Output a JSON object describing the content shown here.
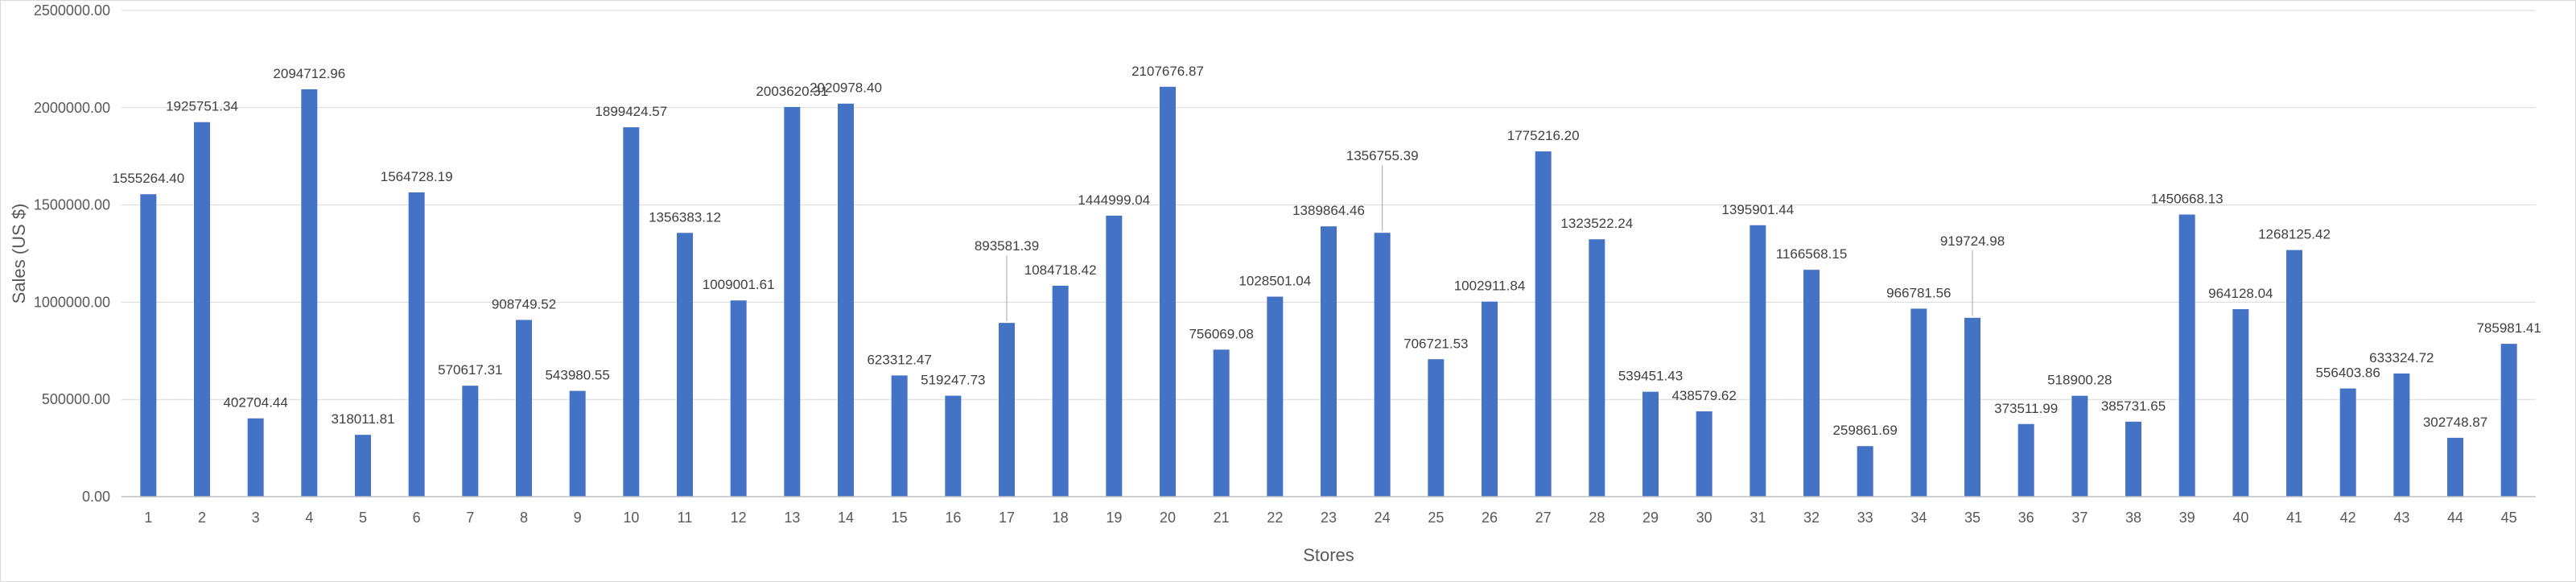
{
  "chart_data": {
    "type": "bar",
    "xlabel": "Stores",
    "ylabel": "Sales (US $)",
    "ylim": [
      0,
      2500000
    ],
    "yticks": [
      "0.00",
      "500000.00",
      "1000000.00",
      "1500000.00",
      "2000000.00",
      "2500000.00"
    ],
    "ytick_values": [
      0,
      500000,
      1000000,
      1500000,
      2000000,
      2500000
    ],
    "grid": true,
    "legend": "none",
    "bar_color": "#4472C4",
    "categories": [
      "1",
      "2",
      "3",
      "4",
      "5",
      "6",
      "7",
      "8",
      "9",
      "10",
      "11",
      "12",
      "13",
      "14",
      "15",
      "16",
      "17",
      "18",
      "19",
      "20",
      "21",
      "22",
      "23",
      "24",
      "25",
      "26",
      "27",
      "28",
      "29",
      "30",
      "31",
      "32",
      "33",
      "34",
      "35",
      "36",
      "37",
      "38",
      "39",
      "40",
      "41",
      "42",
      "43",
      "44",
      "45"
    ],
    "values": [
      1555264.4,
      1925751.34,
      402704.44,
      2094712.96,
      318011.81,
      1564728.19,
      570617.31,
      908749.52,
      543980.55,
      1899424.57,
      1356383.12,
      1009001.61,
      2003620.31,
      2020978.4,
      623312.47,
      519247.73,
      893581.39,
      1084718.42,
      1444999.04,
      2107676.87,
      756069.08,
      1028501.04,
      1389864.46,
      1356755.39,
      706721.53,
      1002911.84,
      1775216.2,
      1323522.24,
      539451.43,
      438579.62,
      1395901.44,
      1166568.15,
      259861.69,
      966781.56,
      919724.98,
      373511.99,
      518900.28,
      385731.65,
      1450668.13,
      964128.04,
      1268125.42,
      556403.86,
      633324.72,
      302748.87,
      785981.41
    ],
    "data_labels": [
      "1555264.40",
      "1925751.34",
      "402704.44",
      "2094712.96",
      "318011.81",
      "1564728.19",
      "570617.31",
      "908749.52",
      "543980.55",
      "1899424.57",
      "1356383.12",
      "1009001.61",
      "2003620.31",
      "2020978.40",
      "623312.47",
      "519247.73",
      "893581.39",
      "1084718.42",
      "1444999.04",
      "2107676.87",
      "756069.08",
      "1028501.04",
      "1389864.46",
      "1356755.39",
      "706721.53",
      "1002911.84",
      "1775216.20",
      "1323522.24",
      "539451.43",
      "438579.62",
      "1395901.44",
      "1166568.15",
      "259861.69",
      "966781.56",
      "919724.98",
      "373511.99",
      "518900.28",
      "385731.65",
      "1450668.13",
      "964128.04",
      "1268125.42",
      "556403.86",
      "633324.72",
      "302748.87",
      "785981.41"
    ],
    "label_offsets": {
      "1": 2,
      "2": 2,
      "3": 2,
      "4": 2,
      "5": 2,
      "6": 2,
      "7": 2,
      "8": 2,
      "9": 2,
      "10": 2,
      "11": 2,
      "12": 2,
      "13": 2,
      "14": 2,
      "15": 2,
      "16": 2,
      "17": 1,
      "18": 2,
      "19": 2,
      "20": 2,
      "21": 2,
      "22": 2,
      "23": 2,
      "24": 1,
      "25": 2,
      "26": 2,
      "27": 2,
      "28": 2,
      "29": 2,
      "30": 2,
      "31": 2,
      "32": 2,
      "33": 2,
      "34": 2,
      "35": 1,
      "36": 2,
      "37": 2,
      "38": 2,
      "39": 2,
      "40": 2,
      "41": 2,
      "42": 2,
      "43": 2,
      "44": 2,
      "45": 2
    }
  }
}
